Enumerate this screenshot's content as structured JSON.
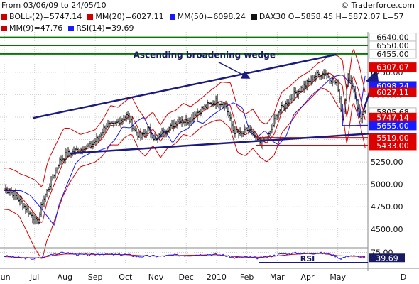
{
  "header": {
    "range_text": "From 03/06/09 to 24/05/10",
    "copyright": "© Traderforce.com",
    "legend_row1": [
      {
        "color": "#cc0000",
        "text": "BOLL-(2)=5747.14"
      },
      {
        "color": "#cc0000",
        "text": "MM(20)=6027.11"
      },
      {
        "color": "#1a1aff",
        "text": "MM(50)=6098.24"
      },
      {
        "color": "#111111",
        "text": "DAX30 O=5858.45 H=5872.07 L=57"
      }
    ],
    "legend_row2": [
      {
        "color": "#cc0000",
        "text": "MM(9)=47.76"
      },
      {
        "color": "#1a1aff",
        "text": "RSI(14)=39.69"
      }
    ]
  },
  "chart_data": {
    "type": "candlestick",
    "instrument": "DAX30",
    "ylim": [
      4300,
      6700
    ],
    "y_ticks": [
      4500,
      4750,
      5000,
      5250,
      5500,
      5750,
      6000,
      6250,
      6500
    ],
    "y_tick_labels": [
      "4500.00",
      "4750.00",
      "5000.00",
      "5250.00",
      "5500.00",
      "5750.00",
      "6000.00",
      "6250.00",
      "6500.00"
    ],
    "x_labels": [
      {
        "label": "Jun",
        "month": 0
      },
      {
        "label": "Jul",
        "month": 1
      },
      {
        "label": "Aug",
        "month": 2
      },
      {
        "label": "Sep",
        "month": 3
      },
      {
        "label": "Oct",
        "month": 4
      },
      {
        "label": "Nov",
        "month": 5
      },
      {
        "label": "Dec",
        "month": 6
      },
      {
        "label": "2010",
        "month": 7
      },
      {
        "label": "Feb",
        "month": 8
      },
      {
        "label": "Mar",
        "month": 9
      },
      {
        "label": "Apr",
        "month": 10
      },
      {
        "label": "May",
        "month": 11
      },
      {
        "label": "D",
        "month": 12
      }
    ],
    "close_path": [
      [
        0.0,
        4950
      ],
      [
        0.3,
        4900
      ],
      [
        0.6,
        4780
      ],
      [
        0.9,
        4650
      ],
      [
        1.1,
        4560
      ],
      [
        1.25,
        4790
      ],
      [
        1.5,
        5000
      ],
      [
        1.8,
        5250
      ],
      [
        2.0,
        5320
      ],
      [
        2.3,
        5370
      ],
      [
        2.6,
        5400
      ],
      [
        2.85,
        5430
      ],
      [
        3.1,
        5520
      ],
      [
        3.35,
        5660
      ],
      [
        3.6,
        5650
      ],
      [
        3.85,
        5730
      ],
      [
        4.05,
        5770
      ],
      [
        4.3,
        5600
      ],
      [
        4.5,
        5520
      ],
      [
        4.75,
        5620
      ],
      [
        5.0,
        5480
      ],
      [
        5.25,
        5600
      ],
      [
        5.5,
        5640
      ],
      [
        5.75,
        5730
      ],
      [
        6.0,
        5700
      ],
      [
        6.35,
        5800
      ],
      [
        6.7,
        5880
      ],
      [
        7.0,
        5930
      ],
      [
        7.3,
        5880
      ],
      [
        7.55,
        5600
      ],
      [
        7.8,
        5550
      ],
      [
        8.05,
        5620
      ],
      [
        8.3,
        5500
      ],
      [
        8.5,
        5460
      ],
      [
        8.75,
        5560
      ],
      [
        9.0,
        5800
      ],
      [
        9.3,
        5900
      ],
      [
        9.6,
        6020
      ],
      [
        9.9,
        6100
      ],
      [
        10.2,
        6200
      ],
      [
        10.4,
        6230
      ],
      [
        10.6,
        6240
      ],
      [
        10.8,
        6170
      ],
      [
        11.0,
        6100
      ],
      [
        11.15,
        5730
      ],
      [
        11.35,
        6230
      ],
      [
        11.55,
        6030
      ],
      [
        11.75,
        5720
      ],
      [
        11.9,
        5806
      ]
    ],
    "last_close": 5805.68,
    "last_close_label": "5805.68",
    "bollinger": {
      "offsets": [
        [
          0.0,
          230
        ],
        [
          0.5,
          240
        ],
        [
          1.0,
          380
        ],
        [
          1.5,
          430
        ],
        [
          2.0,
          360
        ],
        [
          2.5,
          180
        ],
        [
          3.0,
          180
        ],
        [
          3.5,
          220
        ],
        [
          4.0,
          200
        ],
        [
          4.5,
          220
        ],
        [
          5.0,
          180
        ],
        [
          5.5,
          190
        ],
        [
          6.0,
          170
        ],
        [
          6.5,
          160
        ],
        [
          7.0,
          190
        ],
        [
          7.5,
          260
        ],
        [
          8.0,
          230
        ],
        [
          8.5,
          200
        ],
        [
          9.0,
          240
        ],
        [
          9.5,
          200
        ],
        [
          10.0,
          160
        ],
        [
          10.5,
          150
        ],
        [
          11.0,
          280
        ],
        [
          11.5,
          300
        ],
        [
          11.9,
          310
        ]
      ]
    },
    "price_labels": [
      {
        "value": 6640.0,
        "text": "6640.00",
        "bg": "#ffffff",
        "fg": "#111111",
        "line": "#007a00"
      },
      {
        "value": 6550.0,
        "text": "6550.00",
        "bg": "#ffffff",
        "fg": "#111111",
        "line": "#007a00"
      },
      {
        "value": 6455.0,
        "text": "6455.00",
        "bg": "#ffffff",
        "fg": "#111111",
        "line": "#007a00"
      },
      {
        "value": 6307.07,
        "text": "6307.07",
        "bg": "#dd0000",
        "fg": "#ffffff",
        "line": null
      },
      {
        "value": 6098.24,
        "text": "6098.24",
        "bg": "#1a1aff",
        "fg": "#ffffff",
        "line": null
      },
      {
        "value": 6027.11,
        "text": "6027.11",
        "bg": "#dd0000",
        "fg": "#ffffff",
        "line": null
      },
      {
        "value": 5805.68,
        "text": "5805.68",
        "bg": "#ffffff",
        "fg": "#111111",
        "line": null
      },
      {
        "value": 5747.14,
        "text": "5747.14",
        "bg": "#dd0000",
        "fg": "#ffffff",
        "line": null
      },
      {
        "value": 5655.0,
        "text": "5655.00",
        "bg": "#1a1aff",
        "fg": "#ffffff",
        "line": "#1a1aff"
      },
      {
        "value": 5519.0,
        "text": "5519.00",
        "bg": "#dd0000",
        "fg": "#ffffff",
        "line": "#dd0000"
      },
      {
        "value": 5433.0,
        "text": "5433.00",
        "bg": "#dd0000",
        "fg": "#ffffff",
        "line": "#dd0000"
      }
    ],
    "support_box": {
      "x_start": 11.15,
      "x_end": 11.6,
      "value": 5655
    },
    "wedge": {
      "upper": [
        [
          0.95,
          5740
        ],
        [
          10.95,
          6448
        ]
      ],
      "lower": [
        [
          2.15,
          5345
        ],
        [
          12.05,
          5565
        ]
      ],
      "label": "Ascending broadening wedge",
      "label_pos": [
        6.6,
        6410
      ],
      "arrow_to": [
        8.05,
        6190
      ]
    },
    "projection_arrow": {
      "from": [
        11.85,
        5830
      ],
      "to": [
        12.25,
        6240
      ]
    },
    "rsi": {
      "ylim": [
        0,
        100
      ],
      "levels": [
        75.0
      ],
      "level_labels": [
        "75.00"
      ],
      "current": 39.69,
      "current_label": "39.69",
      "label": "RSI",
      "rsi_path": [
        [
          0.0,
          52
        ],
        [
          0.5,
          40
        ],
        [
          1.0,
          34
        ],
        [
          1.3,
          45
        ],
        [
          1.6,
          66
        ],
        [
          2.0,
          72
        ],
        [
          2.4,
          62
        ],
        [
          2.8,
          58
        ],
        [
          3.2,
          66
        ],
        [
          3.6,
          60
        ],
        [
          4.0,
          62
        ],
        [
          4.4,
          48
        ],
        [
          4.8,
          52
        ],
        [
          5.2,
          50
        ],
        [
          5.6,
          58
        ],
        [
          6.0,
          55
        ],
        [
          6.4,
          60
        ],
        [
          6.8,
          62
        ],
        [
          7.2,
          58
        ],
        [
          7.6,
          40
        ],
        [
          8.0,
          45
        ],
        [
          8.4,
          38
        ],
        [
          8.8,
          52
        ],
        [
          9.2,
          66
        ],
        [
          9.6,
          70
        ],
        [
          10.0,
          68
        ],
        [
          10.4,
          72
        ],
        [
          10.8,
          62
        ],
        [
          11.1,
          36
        ],
        [
          11.4,
          56
        ],
        [
          11.7,
          46
        ],
        [
          11.9,
          40
        ]
      ],
      "ma_path": [
        [
          0.0,
          48
        ],
        [
          0.6,
          42
        ],
        [
          1.2,
          40
        ],
        [
          1.6,
          55
        ],
        [
          2.0,
          64
        ],
        [
          2.5,
          64
        ],
        [
          3.0,
          62
        ],
        [
          3.5,
          62
        ],
        [
          4.0,
          60
        ],
        [
          4.5,
          54
        ],
        [
          5.0,
          51
        ],
        [
          5.5,
          54
        ],
        [
          6.0,
          56
        ],
        [
          6.5,
          58
        ],
        [
          7.0,
          60
        ],
        [
          7.5,
          50
        ],
        [
          8.0,
          44
        ],
        [
          8.5,
          44
        ],
        [
          9.0,
          52
        ],
        [
          9.5,
          62
        ],
        [
          10.0,
          67
        ],
        [
          10.5,
          68
        ],
        [
          11.0,
          54
        ],
        [
          11.5,
          50
        ],
        [
          11.9,
          48
        ]
      ]
    }
  }
}
